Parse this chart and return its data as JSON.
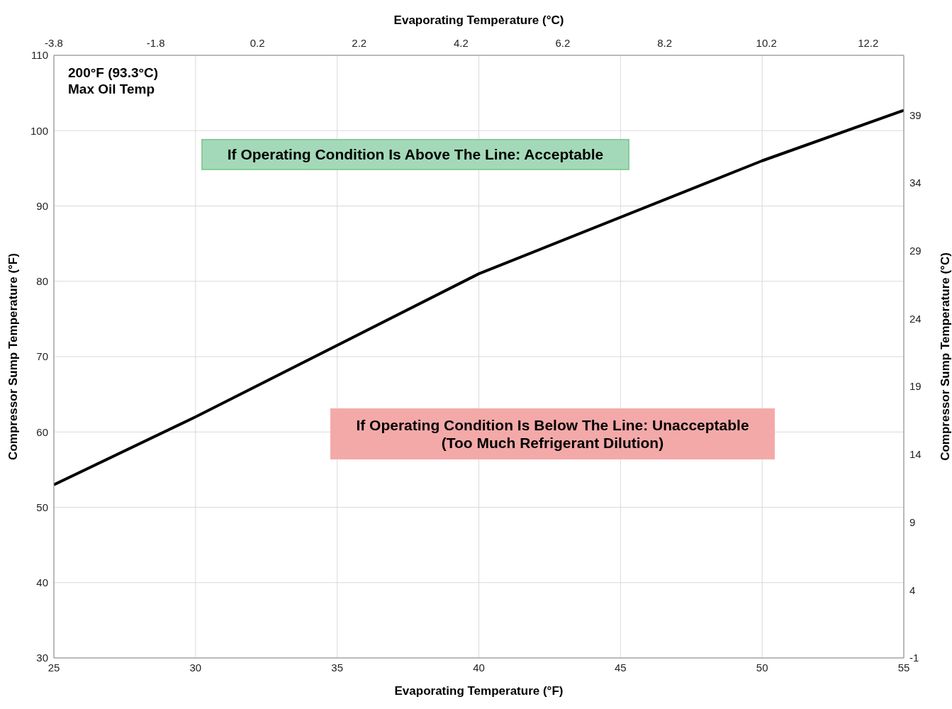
{
  "chart_data": {
    "type": "line",
    "xlabel": "Evaporating Temperature (°F)",
    "x2label": "Evaporating Temperature (°C)",
    "ylabel": "Compressor Sump Temperature (°F)",
    "y2label": "Compressor Sump Temperature  (°C)",
    "x": [
      25,
      30,
      40,
      50,
      55
    ],
    "series": [
      {
        "color": "#000000",
        "values": [
          53,
          62,
          81,
          96,
          102.7
        ]
      }
    ],
    "xlim": [
      25,
      55
    ],
    "xticks": [
      25,
      30,
      35,
      40,
      45,
      50,
      55
    ],
    "ylim": [
      30,
      110
    ],
    "yticks": [
      30,
      40,
      50,
      60,
      70,
      80,
      90,
      100,
      110
    ],
    "x2lim": [
      -3.8,
      12.9
    ],
    "x2ticks": [
      -3.8,
      -1.8,
      0.2,
      2.2,
      4.2,
      6.2,
      8.2,
      10.2,
      12.2
    ],
    "y2lim": [
      -1,
      43.4
    ],
    "y2ticks": [
      -1,
      4,
      9,
      14,
      19,
      24,
      29,
      34,
      39
    ],
    "grid": true,
    "marker": "none",
    "line_style": "solid",
    "annotations": [
      "200°F (93.3°C)\nMax Oil Temp",
      "If Operating Condition Is Above The Line:  Acceptable",
      "If Operating Condition Is Below The Line:  Unacceptable\n(Too Much Refrigerant Dilution)"
    ]
  }
}
